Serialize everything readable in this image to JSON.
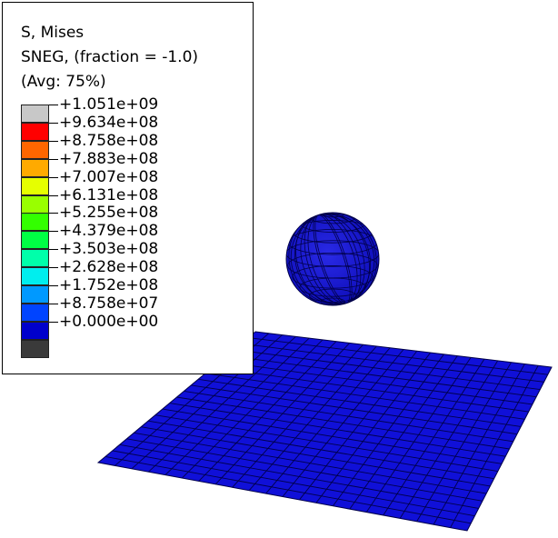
{
  "legend": {
    "title": [
      "S, Mises",
      "SNEG, (fraction = -1.0)",
      "(Avg: 75%)"
    ],
    "levels": [
      {
        "label": "+1.051e+09",
        "color": "#c8c8c8"
      },
      {
        "label": "+9.634e+08",
        "color": "#ff0000"
      },
      {
        "label": "+8.758e+08",
        "color": "#ff6600"
      },
      {
        "label": "+7.883e+08",
        "color": "#ffaa00"
      },
      {
        "label": "+7.007e+08",
        "color": "#e6ff00"
      },
      {
        "label": "+6.131e+08",
        "color": "#99ff00"
      },
      {
        "label": "+5.255e+08",
        "color": "#33ff00"
      },
      {
        "label": "+4.379e+08",
        "color": "#00ff44"
      },
      {
        "label": "+3.503e+08",
        "color": "#00ffaa"
      },
      {
        "label": "+2.628e+08",
        "color": "#00eeee"
      },
      {
        "label": "+1.752e+08",
        "color": "#0099ff"
      },
      {
        "label": "+8.758e+07",
        "color": "#0044ff"
      },
      {
        "label": "+0.000e+00",
        "color": "#0000cc"
      },
      {
        "label": "",
        "color": "#3a3a3a"
      }
    ]
  },
  "model": {
    "plate_color": "#1010d8",
    "sphere_color": "#1a1ad0",
    "mesh_color": "#00004a"
  }
}
